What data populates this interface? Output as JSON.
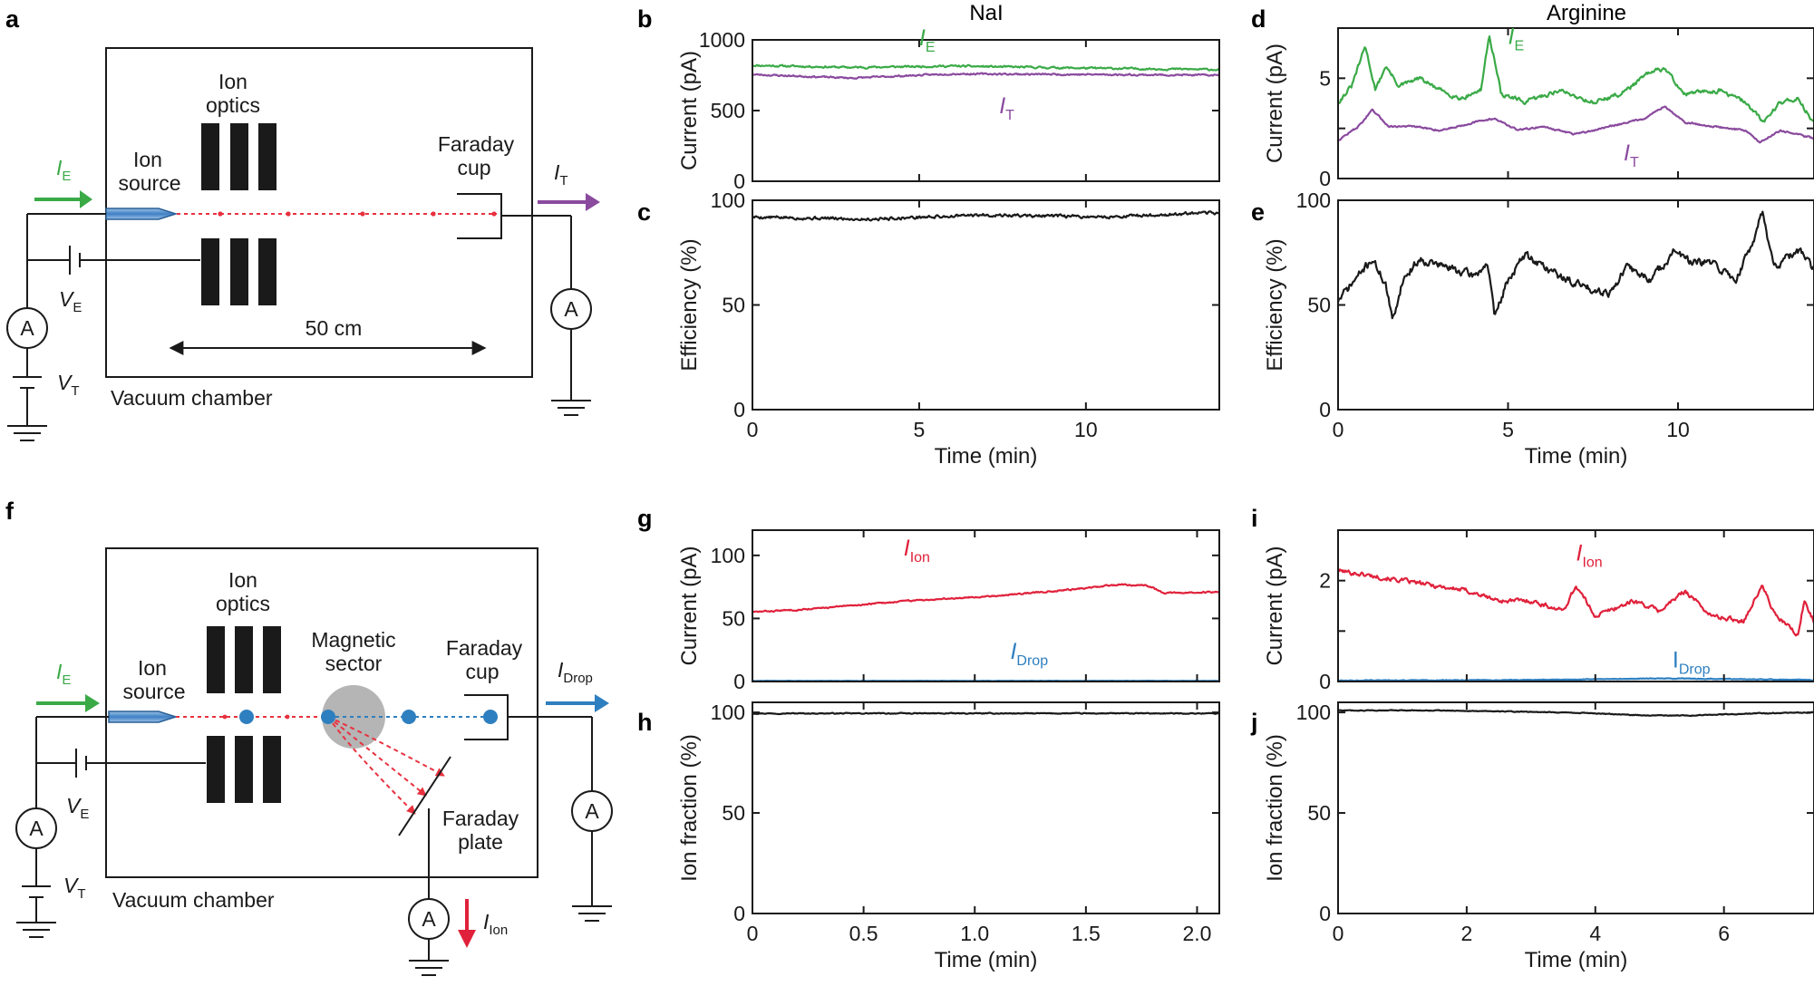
{
  "colors": {
    "green": "#3aaa47",
    "purple": "#8a4a9e",
    "red": "#e0213b",
    "blue": "#2e7fbf",
    "black": "#1a1a1a",
    "gray": "#b5b5b5",
    "red_dash": "#e8313f"
  },
  "panel_letters": {
    "a": "a",
    "b": "b",
    "c": "c",
    "d": "d",
    "e": "e",
    "f": "f",
    "g": "g",
    "h": "h",
    "i": "i",
    "j": "j"
  },
  "column_titles": {
    "nai": "NaI",
    "arginine": "Arginine"
  },
  "schematic_a": {
    "ion_optics": [
      "Ion",
      "optics"
    ],
    "ion_source": [
      "Ion",
      "source"
    ],
    "faraday_cup": [
      "Faraday",
      "cup"
    ],
    "ammeter": "A",
    "distance": "50 cm",
    "chamber": "Vacuum chamber",
    "IE": {
      "main": "I",
      "sub": "E"
    },
    "IT": {
      "main": "I",
      "sub": "T"
    },
    "VE": {
      "main": "V",
      "sub": "E"
    },
    "VT": {
      "main": "V",
      "sub": "T"
    }
  },
  "schematic_f": {
    "ion_optics": [
      "Ion",
      "optics"
    ],
    "ion_source": [
      "Ion",
      "source"
    ],
    "magnetic_sector": [
      "Magnetic",
      "sector"
    ],
    "faraday_cup": [
      "Faraday",
      "cup"
    ],
    "faraday_plate": [
      "Faraday",
      "plate"
    ],
    "ammeter": "A",
    "chamber": "Vacuum chamber",
    "IE": {
      "main": "I",
      "sub": "E"
    },
    "IDrop": {
      "main": "I",
      "sub": "Drop"
    },
    "IIon": {
      "main": "I",
      "sub": "Ion"
    },
    "VE": {
      "main": "V",
      "sub": "E"
    },
    "VT": {
      "main": "V",
      "sub": "T"
    }
  },
  "chart_data": [
    {
      "id": "b",
      "type": "line",
      "title": "",
      "xlabel": "",
      "ylabel": "Current (pA)",
      "xlim": [
        0,
        14
      ],
      "ylim": [
        0,
        1000
      ],
      "xticks": [
        0,
        5,
        10
      ],
      "yticks": [
        0,
        500,
        1000
      ],
      "show_xticklabels": false,
      "series": [
        {
          "name": "I_E",
          "color": "#3aaa47",
          "noise": 12,
          "seed": 11,
          "anchors": [
            [
              0,
              820
            ],
            [
              3,
              805
            ],
            [
              6,
              815
            ],
            [
              10,
              800
            ],
            [
              14,
              790
            ]
          ]
        },
        {
          "name": "I_T",
          "color": "#8a4a9e",
          "noise": 10,
          "seed": 23,
          "anchors": [
            [
              0,
              755
            ],
            [
              3,
              730
            ],
            [
              6,
              760
            ],
            [
              10,
              755
            ],
            [
              14,
              750
            ]
          ]
        }
      ],
      "labels": [
        {
          "main": "I",
          "sub": "E",
          "x": 5.0,
          "y": 960,
          "color": "#3aaa47"
        },
        {
          "main": "I",
          "sub": "T",
          "x": 7.4,
          "y": 480,
          "color": "#8a4a9e"
        }
      ]
    },
    {
      "id": "c",
      "type": "line",
      "xlabel": "Time (min)",
      "ylabel": "Efficiency (%)",
      "xlim": [
        0,
        14
      ],
      "ylim": [
        0,
        100
      ],
      "xticks": [
        0,
        5,
        10
      ],
      "yticks": [
        0,
        50,
        100
      ],
      "show_xticklabels": true,
      "series": [
        {
          "name": "efficiency",
          "color": "#1a1a1a",
          "noise": 1.3,
          "seed": 5,
          "anchors": [
            [
              0,
              92
            ],
            [
              3.5,
              91
            ],
            [
              7,
              93
            ],
            [
              10.5,
              92
            ],
            [
              14,
              94
            ]
          ]
        }
      ]
    },
    {
      "id": "d",
      "type": "line",
      "xlabel": "",
      "ylabel": "Current (pA)",
      "xlim": [
        0,
        14
      ],
      "ylim": [
        0,
        7.5
      ],
      "xticks": [
        0,
        5,
        10
      ],
      "yticks": [
        0,
        2.5,
        5
      ],
      "ytick_labels": [
        "0",
        "",
        "5"
      ],
      "show_xticklabels": false,
      "series": [
        {
          "name": "I_E",
          "color": "#3aaa47",
          "noise": 0.2,
          "seed": 31,
          "anchors": [
            [
              0,
              3.8
            ],
            [
              0.4,
              4.6
            ],
            [
              0.8,
              6.6
            ],
            [
              1.1,
              4.4
            ],
            [
              1.4,
              5.6
            ],
            [
              1.8,
              4.6
            ],
            [
              2.4,
              5.0
            ],
            [
              3.0,
              4.4
            ],
            [
              3.6,
              4.0
            ],
            [
              4.2,
              4.4
            ],
            [
              4.45,
              7.2
            ],
            [
              4.8,
              4.2
            ],
            [
              5.5,
              3.8
            ],
            [
              6.5,
              4.4
            ],
            [
              7.5,
              3.8
            ],
            [
              8.3,
              4.2
            ],
            [
              9.1,
              5.2
            ],
            [
              9.6,
              5.5
            ],
            [
              10.2,
              4.2
            ],
            [
              11.2,
              4.4
            ],
            [
              12.0,
              3.8
            ],
            [
              12.5,
              2.8
            ],
            [
              13.0,
              3.8
            ],
            [
              13.5,
              4.0
            ],
            [
              14,
              2.8
            ]
          ]
        },
        {
          "name": "I_T",
          "color": "#8a4a9e",
          "noise": 0.08,
          "seed": 47,
          "anchors": [
            [
              0,
              1.9
            ],
            [
              0.6,
              2.6
            ],
            [
              1.0,
              3.4
            ],
            [
              1.5,
              2.6
            ],
            [
              2.2,
              2.6
            ],
            [
              3.0,
              2.4
            ],
            [
              4.0,
              2.8
            ],
            [
              4.6,
              3.0
            ],
            [
              5.3,
              2.4
            ],
            [
              6.0,
              2.6
            ],
            [
              7.0,
              2.2
            ],
            [
              8.0,
              2.6
            ],
            [
              9.0,
              3.0
            ],
            [
              9.6,
              3.6
            ],
            [
              10.2,
              2.8
            ],
            [
              11.0,
              2.6
            ],
            [
              12.0,
              2.4
            ],
            [
              12.4,
              1.8
            ],
            [
              13.0,
              2.4
            ],
            [
              14,
              2.0
            ]
          ]
        }
      ],
      "labels": [
        {
          "main": "I",
          "sub": "E",
          "x": 5.0,
          "y": 6.7,
          "color": "#3aaa47"
        },
        {
          "main": "I",
          "sub": "T",
          "x": 8.4,
          "y": 0.9,
          "color": "#8a4a9e"
        }
      ]
    },
    {
      "id": "e",
      "type": "line",
      "xlabel": "Time (min)",
      "ylabel": "Efficiency (%)",
      "xlim": [
        0,
        14
      ],
      "ylim": [
        0,
        100
      ],
      "xticks": [
        0,
        5,
        10
      ],
      "yticks": [
        0,
        50,
        100
      ],
      "show_xticklabels": true,
      "series": [
        {
          "name": "efficiency",
          "color": "#1a1a1a",
          "noise": 3.5,
          "seed": 71,
          "anchors": [
            [
              0,
              52
            ],
            [
              0.5,
              62
            ],
            [
              1.0,
              72
            ],
            [
              1.4,
              60
            ],
            [
              1.6,
              42
            ],
            [
              1.9,
              62
            ],
            [
              2.4,
              72
            ],
            [
              3.2,
              68
            ],
            [
              4.0,
              64
            ],
            [
              4.4,
              70
            ],
            [
              4.6,
              44
            ],
            [
              5.0,
              62
            ],
            [
              5.5,
              74
            ],
            [
              6.1,
              68
            ],
            [
              6.7,
              62
            ],
            [
              7.4,
              58
            ],
            [
              8.0,
              56
            ],
            [
              8.5,
              68
            ],
            [
              9.2,
              62
            ],
            [
              9.9,
              76
            ],
            [
              10.4,
              70
            ],
            [
              11.0,
              70
            ],
            [
              11.7,
              62
            ],
            [
              12.2,
              80
            ],
            [
              12.5,
              96
            ],
            [
              12.8,
              68
            ],
            [
              13.2,
              72
            ],
            [
              13.6,
              76
            ],
            [
              14,
              66
            ]
          ]
        }
      ]
    },
    {
      "id": "g",
      "type": "line",
      "xlabel": "",
      "ylabel": "Current (pA)",
      "xlim": [
        0,
        2.1
      ],
      "ylim": [
        0,
        120
      ],
      "xticks": [
        0,
        0.5,
        1.0,
        1.5,
        2.0
      ],
      "yticks": [
        0,
        50,
        100
      ],
      "show_xticklabels": false,
      "series": [
        {
          "name": "I_Ion",
          "color": "#e0213b",
          "noise": 1.0,
          "seed": 83,
          "anchors": [
            [
              0,
              55
            ],
            [
              0.3,
              58
            ],
            [
              0.7,
              64
            ],
            [
              1.1,
              68
            ],
            [
              1.5,
              74
            ],
            [
              1.65,
              77
            ],
            [
              1.78,
              76
            ],
            [
              1.85,
              70
            ],
            [
              2.1,
              71
            ]
          ]
        },
        {
          "name": "I_Drop",
          "color": "#2e7fbf",
          "noise": 0.25,
          "seed": 91,
          "anchors": [
            [
              0,
              0.5
            ],
            [
              2.1,
              0.5
            ]
          ]
        }
      ],
      "labels": [
        {
          "main": "I",
          "sub": "Ion",
          "x": 0.68,
          "y": 100,
          "color": "#e0213b"
        },
        {
          "main": "I",
          "sub": "Drop",
          "x": 1.16,
          "y": 18,
          "color": "#2e7fbf"
        }
      ]
    },
    {
      "id": "h",
      "type": "line",
      "xlabel": "Time (min)",
      "ylabel": "Ion fraction (%)",
      "xlim": [
        0,
        2.1
      ],
      "ylim": [
        0,
        105
      ],
      "xticks": [
        0,
        0.5,
        1.0,
        1.5,
        2.0
      ],
      "xtick_labels": [
        "0",
        "0.5",
        "1.0",
        "1.5",
        "2.0"
      ],
      "yticks": [
        0,
        50,
        100
      ],
      "show_xticklabels": true,
      "series": [
        {
          "name": "ion_fraction",
          "color": "#1a1a1a",
          "noise": 0.4,
          "seed": 97,
          "anchors": [
            [
              0,
              99.5
            ],
            [
              1.0,
              99.5
            ],
            [
              2.1,
              99.5
            ]
          ]
        }
      ]
    },
    {
      "id": "i",
      "type": "line",
      "xlabel": "",
      "ylabel": "Current (pA)",
      "xlim": [
        0,
        7.4
      ],
      "ylim": [
        0,
        3
      ],
      "xticks": [
        0,
        2,
        4,
        6
      ],
      "yticks": [
        0,
        1,
        2
      ],
      "ytick_labels": [
        "0",
        "",
        "2"
      ],
      "show_xticklabels": false,
      "series": [
        {
          "name": "I_Ion",
          "color": "#e0213b",
          "noise": 0.08,
          "seed": 101,
          "anchors": [
            [
              0,
              2.2
            ],
            [
              0.5,
              2.1
            ],
            [
              1.0,
              2.0
            ],
            [
              1.5,
              1.9
            ],
            [
              2.0,
              1.8
            ],
            [
              2.5,
              1.6
            ],
            [
              3.0,
              1.6
            ],
            [
              3.5,
              1.4
            ],
            [
              3.7,
              1.9
            ],
            [
              4.0,
              1.3
            ],
            [
              4.6,
              1.6
            ],
            [
              5.0,
              1.4
            ],
            [
              5.4,
              1.8
            ],
            [
              5.8,
              1.3
            ],
            [
              6.3,
              1.2
            ],
            [
              6.6,
              1.9
            ],
            [
              6.8,
              1.3
            ],
            [
              7.0,
              1.1
            ],
            [
              7.15,
              0.9
            ],
            [
              7.25,
              1.6
            ],
            [
              7.4,
              1.2
            ]
          ]
        },
        {
          "name": "I_Drop",
          "color": "#2e7fbf",
          "noise": 0.012,
          "seed": 113,
          "anchors": [
            [
              0,
              0.02
            ],
            [
              3.0,
              0.03
            ],
            [
              5.0,
              0.06
            ],
            [
              6.0,
              0.05
            ],
            [
              7.4,
              0.03
            ]
          ]
        }
      ],
      "labels": [
        {
          "main": "I",
          "sub": "Ion",
          "x": 3.7,
          "y": 2.4,
          "color": "#e0213b"
        },
        {
          "main": "I",
          "sub": "Drop",
          "x": 5.2,
          "y": 0.28,
          "color": "#2e7fbf",
          "serif": true
        }
      ]
    },
    {
      "id": "j",
      "type": "line",
      "xlabel": "Time (min)",
      "ylabel": "Ion fraction (%)",
      "xlim": [
        0,
        7.4
      ],
      "ylim": [
        0,
        105
      ],
      "xticks": [
        0,
        2,
        4,
        6
      ],
      "yticks": [
        0,
        50,
        100
      ],
      "show_xticklabels": true,
      "series": [
        {
          "name": "ion_fraction",
          "color": "#1a1a1a",
          "noise": 0.35,
          "seed": 127,
          "anchors": [
            [
              0,
              101
            ],
            [
              1.5,
              101
            ],
            [
              3.5,
              100
            ],
            [
              4.8,
              98.5
            ],
            [
              5.5,
              98.5
            ],
            [
              6.5,
              99.5
            ],
            [
              7.4,
              100
            ]
          ]
        }
      ]
    }
  ]
}
